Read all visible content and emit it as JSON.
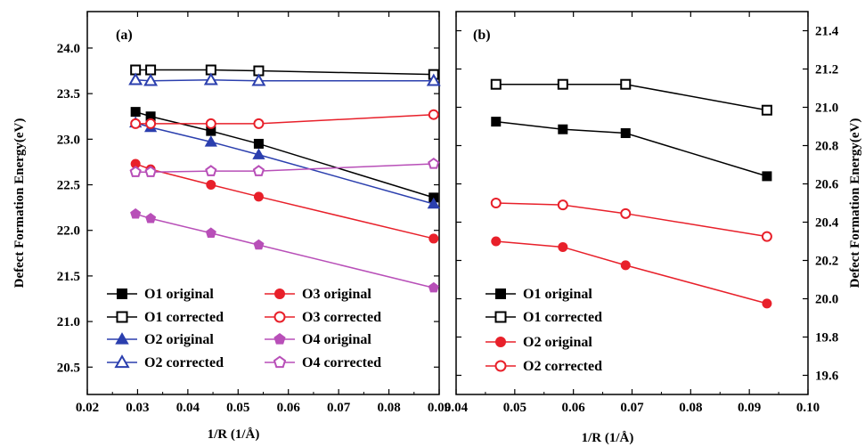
{
  "chart_data": [
    {
      "panel": "(a)",
      "type": "line",
      "xlabel": "1/R (1/Å)",
      "ylabel": "Defect Formation Energy(eV)",
      "xlim": [
        0.02,
        0.09
      ],
      "ylim": [
        20.2,
        24.4
      ],
      "xticks": [
        0.02,
        0.03,
        0.04,
        0.05,
        0.06,
        0.07,
        0.08,
        0.09
      ],
      "yticks": [
        20.5,
        21.0,
        21.5,
        22.0,
        22.5,
        23.0,
        23.5,
        24.0
      ],
      "xtick_labels": [
        "0.02",
        "0.03",
        "0.04",
        "0.05",
        "0.06",
        "0.07",
        "0.08",
        "0.09"
      ],
      "ytick_labels": [
        "20.5",
        "21.0",
        "21.5",
        "22.0",
        "22.5",
        "23.0",
        "23.5",
        "24.0"
      ],
      "yaxis_side": "left",
      "legend_position": "bottom",
      "series": [
        {
          "name": "O1 original",
          "marker": "square",
          "filled": true,
          "color": "#000000",
          "x": [
            0.0296,
            0.0326,
            0.0446,
            0.0541,
            0.0889
          ],
          "y": [
            23.3,
            23.25,
            23.09,
            22.95,
            22.36
          ]
        },
        {
          "name": "O1 corrected",
          "marker": "square",
          "filled": false,
          "color": "#000000",
          "x": [
            0.0296,
            0.0326,
            0.0446,
            0.0541,
            0.0889
          ],
          "y": [
            23.76,
            23.76,
            23.76,
            23.75,
            23.71
          ]
        },
        {
          "name": "O2 original",
          "marker": "triangle",
          "filled": true,
          "color": "#2b3fae",
          "x": [
            0.0296,
            0.0326,
            0.0446,
            0.0541,
            0.0889
          ],
          "y": [
            23.18,
            23.13,
            22.97,
            22.83,
            22.29
          ]
        },
        {
          "name": "O2 corrected",
          "marker": "triangle",
          "filled": false,
          "color": "#2b3fae",
          "x": [
            0.0296,
            0.0326,
            0.0446,
            0.0541,
            0.0889
          ],
          "y": [
            23.65,
            23.64,
            23.65,
            23.64,
            23.64
          ]
        },
        {
          "name": "O3 original",
          "marker": "circle",
          "filled": true,
          "color": "#e8202a",
          "x": [
            0.0296,
            0.0326,
            0.0446,
            0.0541,
            0.0889
          ],
          "y": [
            22.73,
            22.67,
            22.5,
            22.37,
            21.91
          ]
        },
        {
          "name": "O3 corrected",
          "marker": "circle",
          "filled": false,
          "color": "#e8202a",
          "x": [
            0.0296,
            0.0326,
            0.0446,
            0.0541,
            0.0889
          ],
          "y": [
            23.17,
            23.17,
            23.17,
            23.17,
            23.27
          ]
        },
        {
          "name": "O4 original",
          "marker": "pentagon",
          "filled": true,
          "color": "#b84fb8",
          "x": [
            0.0296,
            0.0326,
            0.0446,
            0.0541,
            0.0889
          ],
          "y": [
            22.18,
            22.13,
            21.97,
            21.84,
            21.37
          ]
        },
        {
          "name": "O4 corrected",
          "marker": "pentagon",
          "filled": false,
          "color": "#b84fb8",
          "x": [
            0.0296,
            0.0326,
            0.0446,
            0.0541,
            0.0889
          ],
          "y": [
            22.64,
            22.64,
            22.65,
            22.65,
            22.73
          ]
        }
      ]
    },
    {
      "panel": "(b)",
      "type": "line",
      "xlabel": "1/R (1/Å)",
      "ylabel": "Defect Formation Energy(eV)",
      "xlim": [
        0.04,
        0.1
      ],
      "ylim": [
        19.5,
        21.5
      ],
      "xticks": [
        0.04,
        0.05,
        0.06,
        0.07,
        0.08,
        0.09,
        0.1
      ],
      "yticks": [
        19.6,
        19.8,
        20.0,
        20.2,
        20.4,
        20.6,
        20.8,
        21.0,
        21.2,
        21.4
      ],
      "xtick_labels": [
        "0.04",
        "0.05",
        "0.06",
        "0.07",
        "0.08",
        "0.09",
        "0.10"
      ],
      "ytick_labels": [
        "19.6",
        "19.8",
        "20.0",
        "20.2",
        "20.4",
        "20.6",
        "20.8",
        "21.0",
        "21.2",
        "21.4"
      ],
      "yaxis_side": "right",
      "legend_position": "bottom-left",
      "series": [
        {
          "name": "O1 original",
          "marker": "square",
          "filled": true,
          "color": "#000000",
          "x": [
            0.0468,
            0.0582,
            0.0689,
            0.093
          ],
          "y": [
            20.925,
            20.885,
            20.865,
            20.64
          ]
        },
        {
          "name": "O1 corrected",
          "marker": "square",
          "filled": false,
          "color": "#000000",
          "x": [
            0.0468,
            0.0582,
            0.0689,
            0.093
          ],
          "y": [
            21.12,
            21.12,
            21.12,
            20.985
          ]
        },
        {
          "name": "O2 original",
          "marker": "circle",
          "filled": true,
          "color": "#e8202a",
          "x": [
            0.0468,
            0.0582,
            0.0689,
            0.093
          ],
          "y": [
            20.3,
            20.27,
            20.175,
            19.975
          ]
        },
        {
          "name": "O2 corrected",
          "marker": "circle",
          "filled": false,
          "color": "#e8202a",
          "x": [
            0.0468,
            0.0582,
            0.0689,
            0.093
          ],
          "y": [
            20.5,
            20.49,
            20.445,
            20.325
          ]
        }
      ]
    }
  ]
}
